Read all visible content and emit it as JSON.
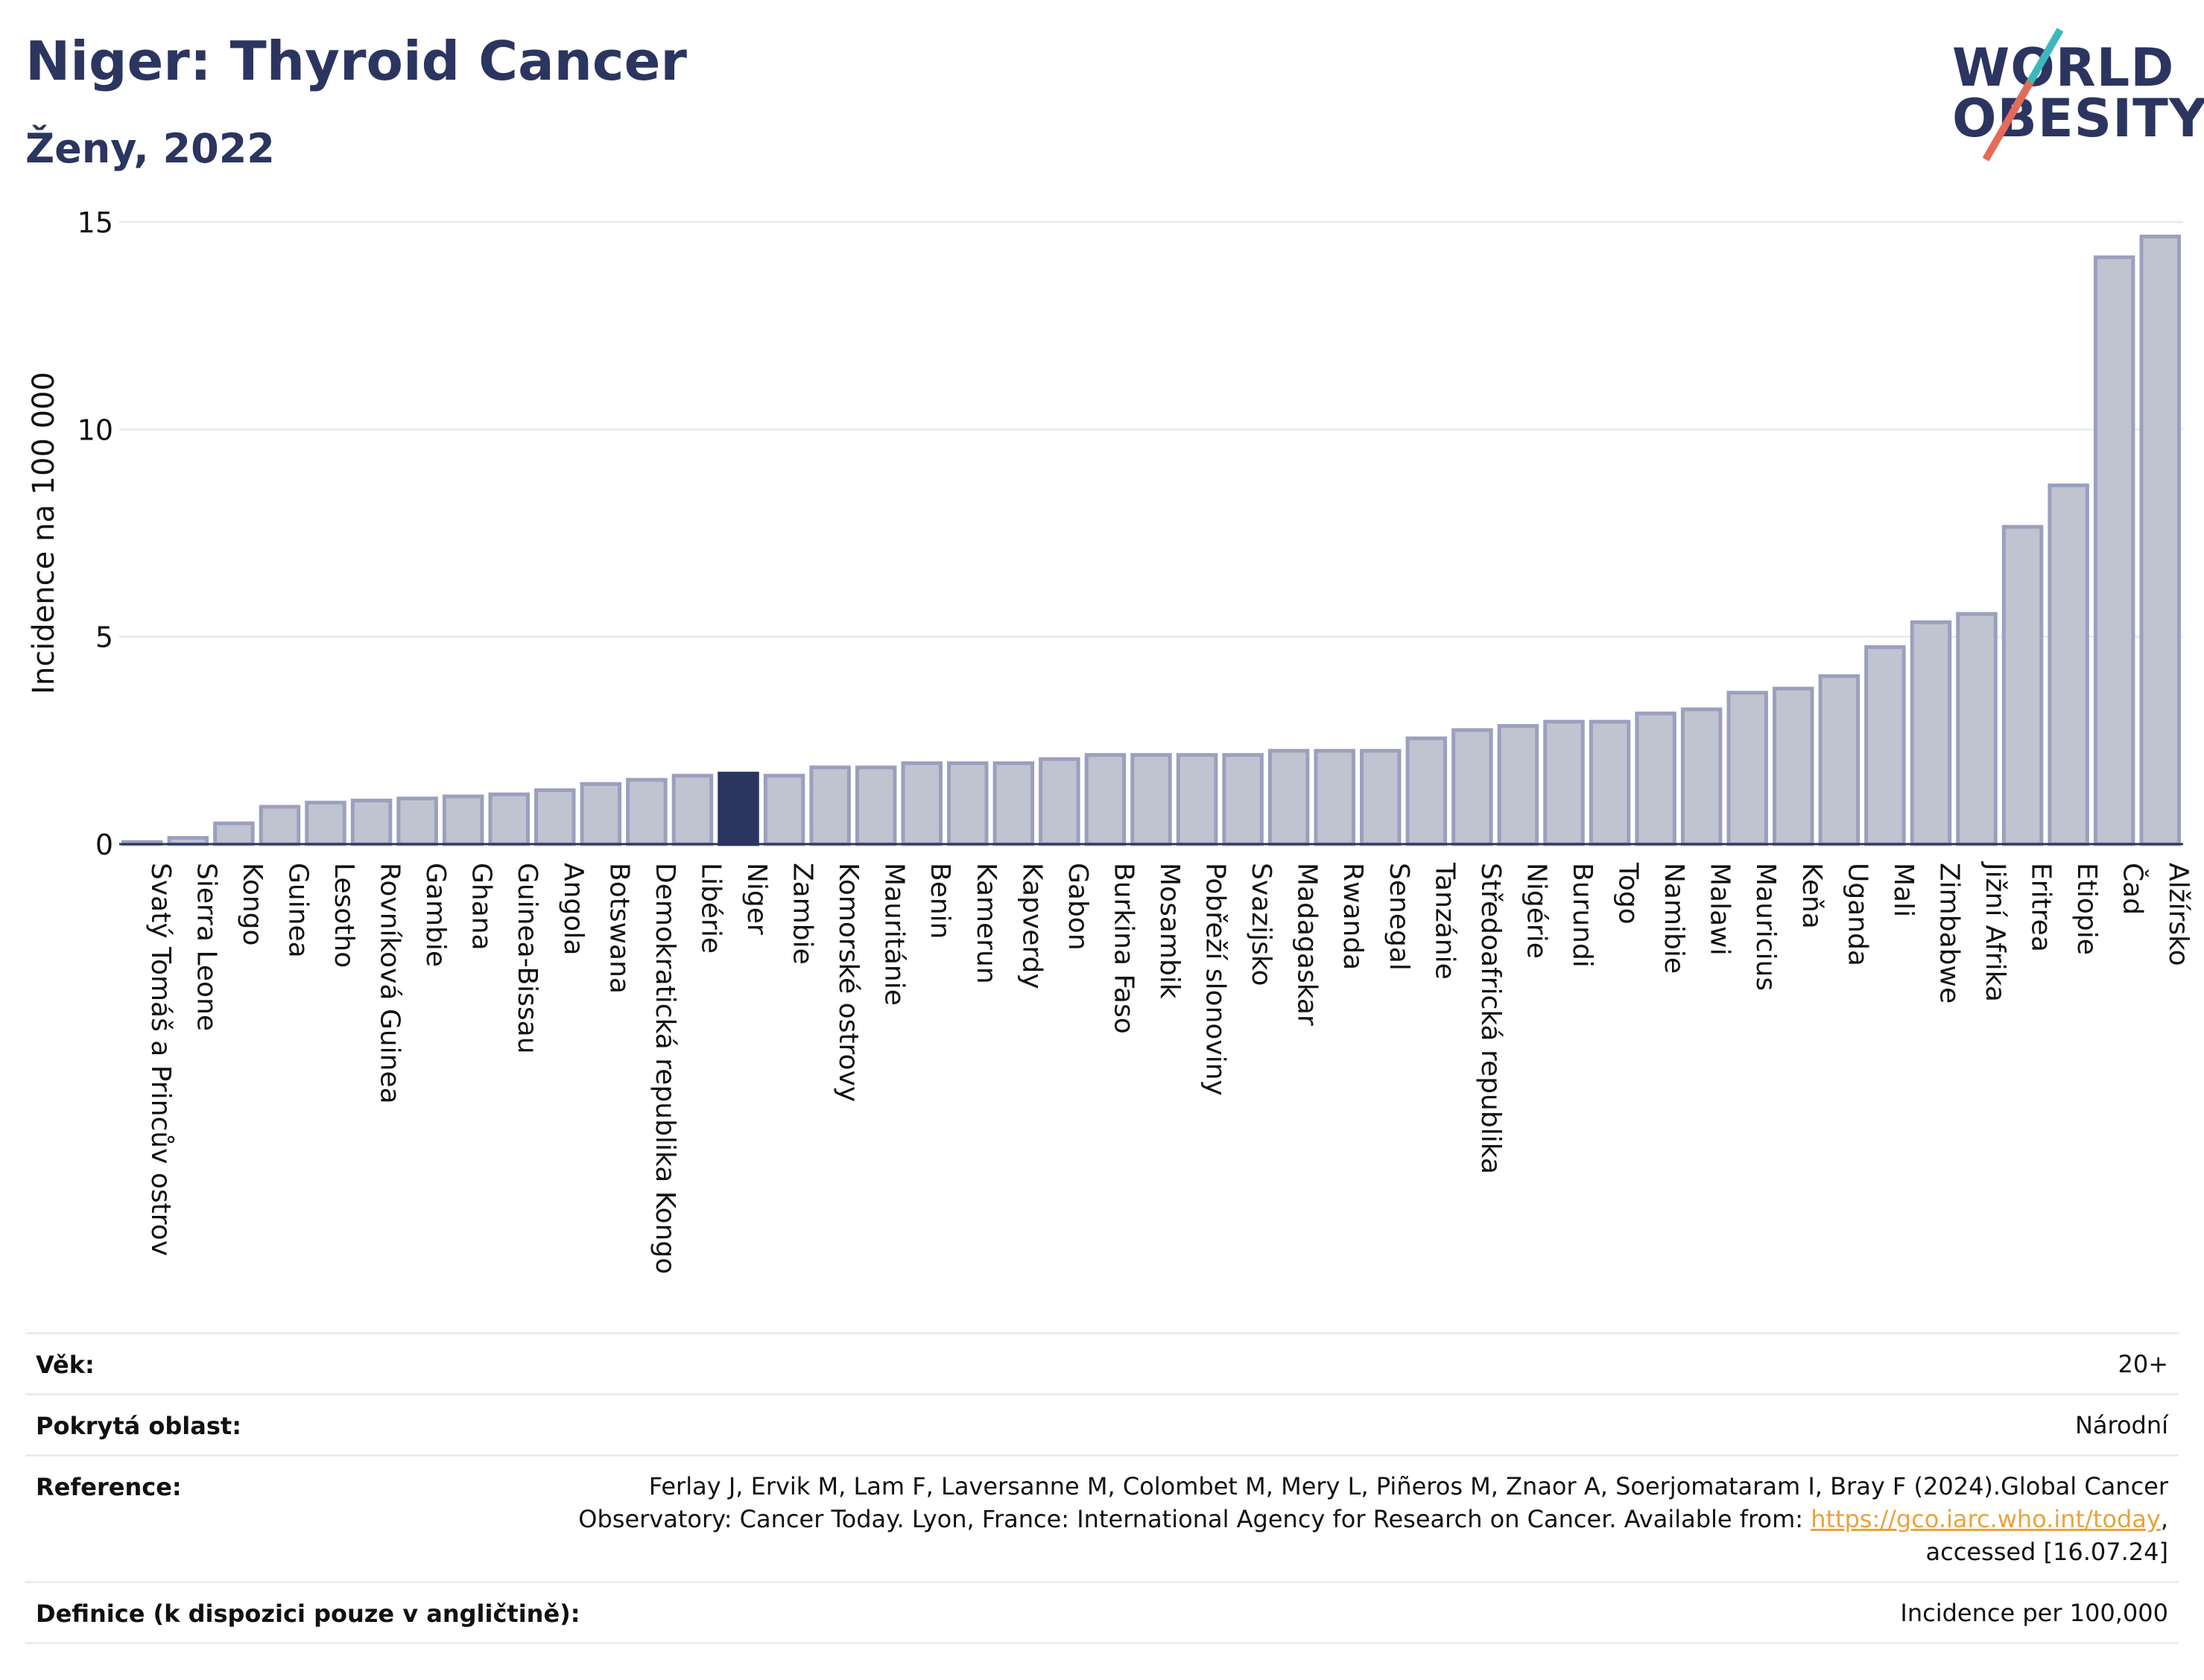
{
  "header": {
    "title": "Niger: Thyroid Cancer",
    "subtitle": "Ženy, 2022"
  },
  "logo": {
    "line1": "WORLD",
    "line2": "OBESITY"
  },
  "chart_data": {
    "type": "bar",
    "ylabel": "Incidence na 100 000",
    "xlabel": "",
    "ylim": [
      0,
      15
    ],
    "yticks": [
      0,
      5,
      10,
      15
    ],
    "grid": true,
    "highlight": "Niger",
    "colors": {
      "bar": "#c0c4d1",
      "bar_edge": "#9aa0bd",
      "highlight": "#2b3560",
      "grid": "#e6edf2",
      "axis": "#2b3560"
    },
    "categories": [
      "Svatý Tomáš a Princův ostrov",
      "Sierra Leone",
      "Kongo",
      "Guinea",
      "Lesotho",
      "Rovníková Guinea",
      "Gambie",
      "Ghana",
      "Guinea-Bissau",
      "Angola",
      "Botswana",
      "Demokratická republika Kongo",
      "Libérie",
      "Niger",
      "Zambie",
      "Komorské ostrovy",
      "Mauritánie",
      "Benin",
      "Kamerun",
      "Kapverdy",
      "Gabon",
      "Burkina Faso",
      "Mosambik",
      "Pobřeží slonoviny",
      "Svazijsko",
      "Madagaskar",
      "Rwanda",
      "Senegal",
      "Tanzánie",
      "Středoafrická republika",
      "Nigérie",
      "Burundi",
      "Togo",
      "Namibie",
      "Malawi",
      "Mauricius",
      "Keňa",
      "Uganda",
      "Mali",
      "Zimbabwe",
      "Jižní Afrika",
      "Eritrea",
      "Etiopie",
      "Čad",
      "Alžírsko"
    ],
    "values": [
      0.05,
      0.15,
      0.5,
      0.9,
      1.0,
      1.05,
      1.1,
      1.15,
      1.2,
      1.3,
      1.45,
      1.55,
      1.65,
      1.7,
      1.65,
      1.85,
      1.85,
      1.95,
      1.95,
      1.95,
      2.05,
      2.15,
      2.15,
      2.15,
      2.15,
      2.25,
      2.25,
      2.25,
      2.55,
      2.75,
      2.85,
      2.95,
      2.95,
      3.15,
      3.25,
      3.65,
      3.75,
      4.05,
      4.75,
      5.35,
      5.55,
      7.65,
      8.65,
      14.15,
      14.65
    ]
  },
  "info": {
    "age_label": "Věk:",
    "age_value": "20+",
    "coverage_label": "Pokrytá oblast:",
    "coverage_value": "Národní",
    "reference_label": "Reference:",
    "reference_line1": "Ferlay J, Ervik M, Lam F, Laversanne M, Colombet M, Mery L, Piñeros M, Znaor A, Soerjomataram I, Bray F (2024).Global Cancer",
    "reference_line2": "Observatory: Cancer Today. Lyon, France: International Agency for Research on Cancer. Available from: ",
    "reference_link": "https://gco.iarc.who.int/today",
    "reference_line2_end": ",",
    "reference_line3": "accessed [16.07.24]",
    "definition_label": "Definice (k dispozici pouze v angličtině):",
    "definition_value": "Incidence per 100,000"
  }
}
